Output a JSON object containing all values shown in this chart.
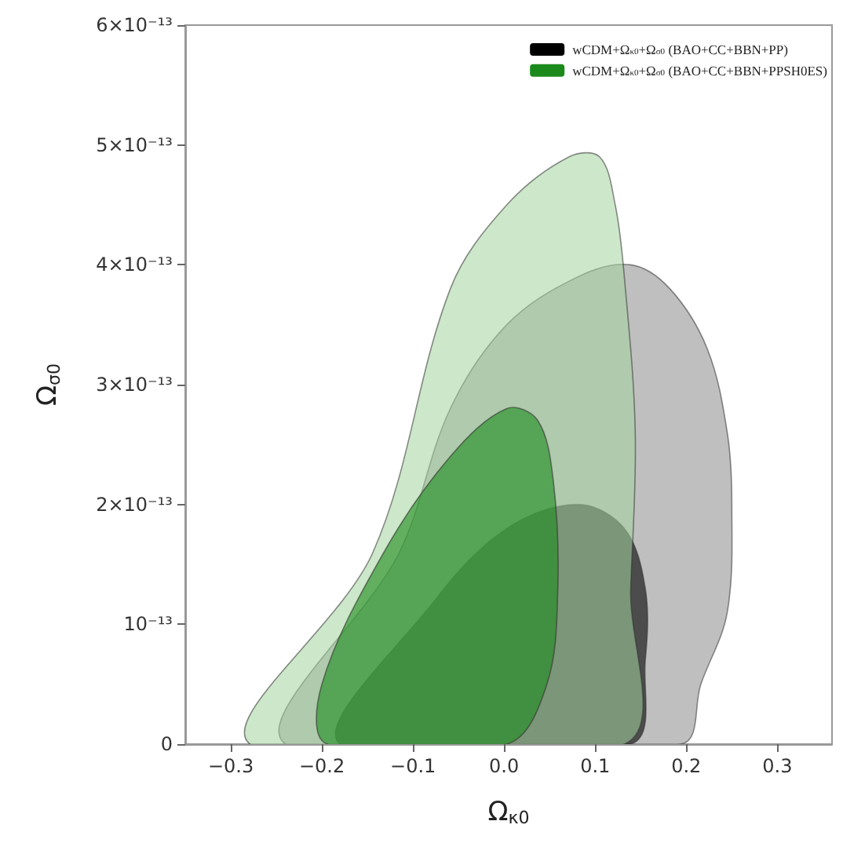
{
  "chart_data": {
    "type": "area",
    "xlabel": "Ω$_{κ0}$",
    "ylabel": "Ω$_{σ0}$",
    "xlim": [
      -0.35,
      0.36
    ],
    "xticks": [
      {
        "value": -0.3,
        "label": "−0.3"
      },
      {
        "value": -0.2,
        "label": "−0.2"
      },
      {
        "value": -0.1,
        "label": "−0.1"
      },
      {
        "value": 0,
        "label": "0.0"
      },
      {
        "value": 0.1,
        "label": "0.1"
      },
      {
        "value": 0.2,
        "label": "0.2"
      },
      {
        "value": 0.3,
        "label": "0.3"
      }
    ],
    "ylim": [
      0,
      6e-13
    ],
    "yticks": [
      0,
      {
        "value": 1e-13,
        "label": "10⁻¹³"
      },
      {
        "value": 2e-13,
        "label": "2×10⁻¹³"
      },
      {
        "value": 3e-13,
        "label": "3×10⁻¹³"
      },
      {
        "value": 4e-13,
        "label": "4×10⁻¹³"
      },
      {
        "value": 5e-13,
        "label": "5×10⁻¹³"
      },
      {
        "value": 6e-13,
        "label": "6×10⁻¹³"
      }
    ],
    "grid": false,
    "legend": "top right",
    "series": [
      {
        "color": "#8a8a8a",
        "x": [
          -0.24,
          -0.115,
          -0.059,
          0.003,
          0.081,
          0.139,
          0.182,
          0.223,
          0.245,
          0.25,
          0.245,
          0.216,
          0.194
        ],
        "values": [
          0,
          1.6e-13,
          2.8e-13,
          3.5e-13,
          3.9e-13,
          4e-13,
          3.8e-13,
          3.3e-13,
          2.6e-13,
          2e-13,
          1.1e-13,
          5e-14,
          0
        ]
      },
      {
        "name": "wCDM+Ω$_{κ0}$+Ω$_{σ0}$ (BAO+CC+BBN+PP)",
        "color": "#000000",
        "x": [
          -0.18,
          -0.076,
          0.003,
          0.081,
          0.132,
          0.155,
          0.155,
          0.139
        ],
        "values": [
          0,
          1.2e-13,
          1.8e-13,
          2e-13,
          1.8e-13,
          1.3e-13,
          7e-14,
          0
        ]
      },
      {
        "color": "#a3d49c",
        "x": [
          -0.279,
          -0.144,
          -0.059,
          0.003,
          0.071,
          0.105,
          0.122,
          0.132,
          0.144,
          0.139,
          0.132
        ],
        "values": [
          0,
          1.6e-13,
          3.8e-13,
          4.5e-13,
          4.9e-13,
          4.9e-13,
          4.5e-13,
          3.9e-13,
          2.6e-13,
          1.3e-13,
          0
        ]
      },
      {
        "name": "wCDM+Ω$_{κ0}$+Ω$_{σ0}$ (BAO+CC+BBN+PPSH0ES)",
        "color": "#1b8a1b",
        "x": [
          -0.194,
          -0.2,
          -0.132,
          -0.059,
          0.003,
          0.037,
          0.054,
          0.059,
          0.047,
          0.003
        ],
        "values": [
          0,
          5e-14,
          1.6e-13,
          2.4e-13,
          2.8e-13,
          2.7e-13,
          2.2e-13,
          1.3e-13,
          5e-14,
          0
        ]
      }
    ]
  }
}
